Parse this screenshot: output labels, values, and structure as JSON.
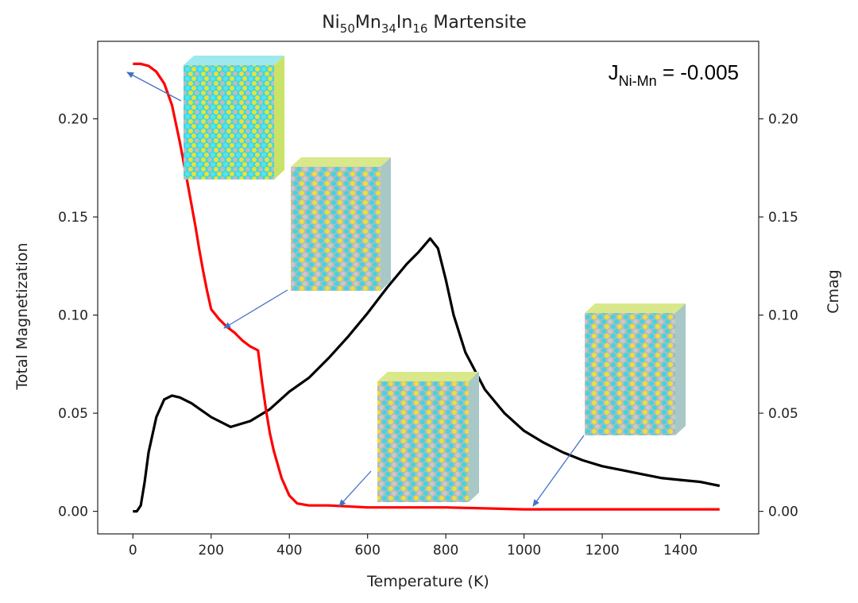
{
  "chart_data": {
    "type": "line",
    "title": {
      "base": "Ni",
      "parts": [
        {
          "sub": "50",
          "txt": "Mn"
        },
        {
          "sub": "34",
          "txt": "In"
        },
        {
          "sub": "16",
          "txt": " Martensite"
        }
      ]
    },
    "xlabel": "Temperature (K)",
    "ylabel_left": "Total Magnetization",
    "ylabel_right": "Cmag",
    "xlim": [
      -90,
      1600
    ],
    "ylim": [
      -0.0115,
      0.2395
    ],
    "xticks": [
      "0",
      "200",
      "400",
      "600",
      "800",
      "1000",
      "1200",
      "1400"
    ],
    "xtick_values": [
      0,
      200,
      400,
      600,
      800,
      1000,
      1200,
      1400
    ],
    "yticks": [
      "0.00",
      "0.05",
      "0.10",
      "0.15",
      "0.20"
    ],
    "ytick_values": [
      0,
      0.05,
      0.1,
      0.15,
      0.2
    ],
    "annotation": {
      "pre": "J",
      "sub": "Ni-Mn",
      "post": " = -0.005"
    },
    "colors": {
      "magnetization": "#ff0000",
      "cmag": "#000000",
      "arrow": "#4472c4"
    },
    "series": [
      {
        "key": "magnetization",
        "color": "#ff0000",
        "x": [
          0,
          20,
          40,
          60,
          80,
          100,
          120,
          140,
          160,
          170,
          180,
          190,
          200,
          220,
          240,
          260,
          280,
          300,
          320,
          330,
          340,
          350,
          360,
          380,
          400,
          420,
          450,
          500,
          600,
          800,
          1000,
          1200,
          1400,
          1500
        ],
        "y": [
          0.228,
          0.228,
          0.227,
          0.224,
          0.218,
          0.207,
          0.188,
          0.167,
          0.145,
          0.133,
          0.122,
          0.112,
          0.103,
          0.098,
          0.094,
          0.091,
          0.087,
          0.084,
          0.082,
          0.066,
          0.052,
          0.04,
          0.031,
          0.017,
          0.008,
          0.004,
          0.003,
          0.003,
          0.002,
          0.002,
          0.001,
          0.001,
          0.001,
          0.001
        ]
      },
      {
        "key": "cmag",
        "color": "#000000",
        "x": [
          0,
          10,
          20,
          30,
          40,
          60,
          80,
          100,
          120,
          150,
          200,
          250,
          300,
          350,
          400,
          450,
          500,
          550,
          600,
          650,
          700,
          730,
          760,
          780,
          800,
          820,
          850,
          900,
          950,
          1000,
          1050,
          1100,
          1150,
          1200,
          1250,
          1300,
          1350,
          1400,
          1450,
          1500
        ],
        "y": [
          0.0,
          0.0,
          0.003,
          0.015,
          0.03,
          0.048,
          0.057,
          0.059,
          0.058,
          0.055,
          0.048,
          0.043,
          0.046,
          0.052,
          0.061,
          0.068,
          0.078,
          0.089,
          0.101,
          0.114,
          0.126,
          0.132,
          0.139,
          0.134,
          0.118,
          0.1,
          0.081,
          0.062,
          0.05,
          0.041,
          0.035,
          0.03,
          0.026,
          0.023,
          0.021,
          0.019,
          0.017,
          0.016,
          0.015,
          0.013
        ]
      }
    ]
  }
}
